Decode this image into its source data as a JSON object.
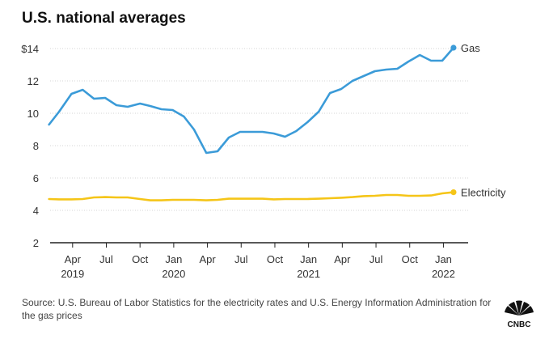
{
  "chart_data": {
    "type": "line",
    "title": "U.S. national averages",
    "y_ticks": [
      "$14",
      "12",
      "10",
      "8",
      "6",
      "4",
      "2"
    ],
    "y_tick_values": [
      14,
      12,
      10,
      8,
      6,
      4,
      2
    ],
    "ylim": [
      2,
      14
    ],
    "xlim": [
      0,
      37.2
    ],
    "x_ticks": [
      {
        "label": "Apr",
        "year": "2019",
        "x": 2
      },
      {
        "label": "Jul",
        "year": "",
        "x": 5
      },
      {
        "label": "Oct",
        "year": "",
        "x": 8
      },
      {
        "label": "Jan",
        "year": "2020",
        "x": 11
      },
      {
        "label": "Apr",
        "year": "",
        "x": 14
      },
      {
        "label": "Jul",
        "year": "",
        "x": 17
      },
      {
        "label": "Oct",
        "year": "",
        "x": 20
      },
      {
        "label": "Jan",
        "year": "2021",
        "x": 23
      },
      {
        "label": "Apr",
        "year": "",
        "x": 26
      },
      {
        "label": "Jul",
        "year": "",
        "x": 29
      },
      {
        "label": "Oct",
        "year": "",
        "x": 32
      },
      {
        "label": "Jan",
        "year": "2022",
        "x": 35
      }
    ],
    "series": [
      {
        "name": "Gas",
        "color": "#3b9bd8",
        "x": [
          -0.1,
          0.8,
          1.9,
          2.9,
          3.9,
          4.9,
          5.9,
          6.9,
          8,
          8.9,
          9.9,
          10.9,
          11.9,
          12.8,
          13.9,
          14.9,
          15.9,
          16.9,
          17.9,
          18.9,
          19.9,
          20.9,
          21.9,
          22.9,
          23.9,
          24.9,
          25.9,
          26.9,
          27.9,
          28.9,
          29.9,
          30.9,
          31.9,
          32.9,
          33.9,
          34.9,
          35.9
        ],
        "values": [
          9.3,
          10.1,
          11.2,
          11.45,
          10.9,
          10.95,
          10.5,
          10.4,
          10.6,
          10.45,
          10.25,
          10.2,
          9.8,
          9.0,
          7.55,
          7.65,
          8.5,
          8.85,
          8.85,
          8.85,
          8.75,
          8.55,
          8.9,
          9.45,
          10.1,
          11.25,
          11.5,
          12.0,
          12.3,
          12.6,
          12.7,
          12.75,
          13.2,
          13.6,
          13.25,
          13.25,
          14.05
        ]
      },
      {
        "name": "Electricity",
        "color": "#f5c518",
        "x": [
          -0.1,
          0.8,
          1.9,
          2.9,
          3.9,
          4.9,
          5.9,
          6.9,
          8,
          8.9,
          9.9,
          10.9,
          11.9,
          12.8,
          13.9,
          14.9,
          15.9,
          16.9,
          17.9,
          18.9,
          19.9,
          20.9,
          21.9,
          22.9,
          23.9,
          24.9,
          25.9,
          26.9,
          27.9,
          28.9,
          29.9,
          30.9,
          31.9,
          32.9,
          33.9,
          34.9,
          35.9
        ],
        "values": [
          4.7,
          4.68,
          4.68,
          4.7,
          4.8,
          4.82,
          4.8,
          4.8,
          4.7,
          4.62,
          4.62,
          4.65,
          4.65,
          4.65,
          4.62,
          4.65,
          4.72,
          4.72,
          4.72,
          4.72,
          4.68,
          4.7,
          4.7,
          4.7,
          4.72,
          4.75,
          4.78,
          4.82,
          4.88,
          4.9,
          4.95,
          4.95,
          4.9,
          4.9,
          4.92,
          5.05,
          5.12
        ]
      }
    ]
  },
  "source_text": "Source: U.S. Bureau of Labor Statistics for the electricity rates and U.S. Energy Information Administration for the gas prices",
  "logo_text": "CNBC",
  "colors": {
    "gas": "#3b9bd8",
    "electricity": "#f5c518",
    "axis": "#222222",
    "grid": "#d4d4d4"
  }
}
